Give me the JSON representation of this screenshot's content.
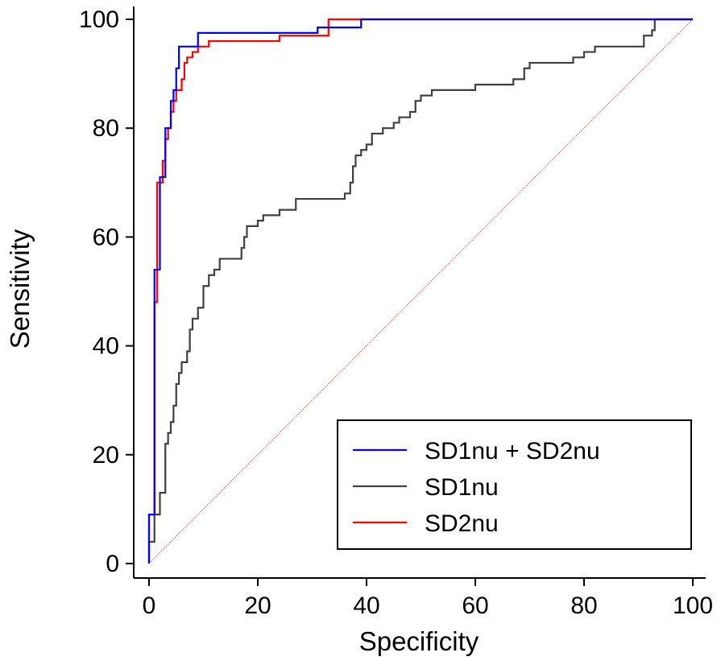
{
  "chart_data": {
    "type": "line",
    "title": "",
    "xlabel": "Specificity",
    "ylabel": "Sensitivity",
    "xlim": [
      0,
      100
    ],
    "ylim": [
      0,
      100
    ],
    "xticks": [
      "0",
      "20",
      "40",
      "60",
      "80",
      "100"
    ],
    "yticks": [
      "0",
      "20",
      "40",
      "60",
      "80",
      "100"
    ],
    "grid": false,
    "legend_position": "bottom-right",
    "reference_line": {
      "from": [
        0,
        0
      ],
      "to": [
        100,
        100
      ],
      "color": "#c0504d",
      "style": "dotted"
    },
    "series": [
      {
        "name": "SD1nu + SD2nu",
        "color": "#0000ff",
        "points": [
          [
            0,
            0
          ],
          [
            0,
            9
          ],
          [
            1,
            9
          ],
          [
            1,
            48
          ],
          [
            1,
            54
          ],
          [
            2,
            54
          ],
          [
            2,
            71
          ],
          [
            3,
            71
          ],
          [
            3,
            80
          ],
          [
            4,
            80
          ],
          [
            4,
            85
          ],
          [
            4.5,
            85
          ],
          [
            4.5,
            87
          ],
          [
            5,
            87
          ],
          [
            5,
            91
          ],
          [
            5.5,
            91
          ],
          [
            5.5,
            95
          ],
          [
            9,
            95
          ],
          [
            9,
            97.5
          ],
          [
            31,
            97.5
          ],
          [
            31,
            98.5
          ],
          [
            39,
            98.5
          ],
          [
            39,
            100
          ],
          [
            100,
            100
          ]
        ]
      },
      {
        "name": "SD1nu",
        "color": "#404040",
        "points": [
          [
            0,
            0
          ],
          [
            0,
            4
          ],
          [
            1,
            4
          ],
          [
            1,
            9
          ],
          [
            2,
            9
          ],
          [
            2,
            13
          ],
          [
            3,
            13
          ],
          [
            3,
            22
          ],
          [
            3.5,
            22
          ],
          [
            3.5,
            24
          ],
          [
            4,
            24
          ],
          [
            4,
            26
          ],
          [
            4.5,
            26
          ],
          [
            4.5,
            29
          ],
          [
            5,
            29
          ],
          [
            5,
            33
          ],
          [
            5.5,
            33
          ],
          [
            5.5,
            35
          ],
          [
            6,
            35
          ],
          [
            6,
            37
          ],
          [
            7,
            37
          ],
          [
            7,
            39
          ],
          [
            7.5,
            39
          ],
          [
            7.5,
            43
          ],
          [
            8,
            43
          ],
          [
            8,
            45
          ],
          [
            9,
            45
          ],
          [
            9,
            47
          ],
          [
            10,
            47
          ],
          [
            10,
            51
          ],
          [
            11,
            51
          ],
          [
            11,
            53
          ],
          [
            12,
            53
          ],
          [
            12,
            54
          ],
          [
            13,
            54
          ],
          [
            13,
            56
          ],
          [
            17,
            56
          ],
          [
            17,
            58
          ],
          [
            17.5,
            58
          ],
          [
            17.5,
            60
          ],
          [
            18,
            60
          ],
          [
            18,
            62
          ],
          [
            20,
            62
          ],
          [
            20,
            63
          ],
          [
            21,
            63
          ],
          [
            21,
            64
          ],
          [
            24,
            64
          ],
          [
            24,
            65
          ],
          [
            27,
            65
          ],
          [
            27,
            67
          ],
          [
            36,
            67
          ],
          [
            36,
            68
          ],
          [
            37,
            68
          ],
          [
            37,
            70
          ],
          [
            37.5,
            70
          ],
          [
            37.5,
            73
          ],
          [
            38,
            73
          ],
          [
            38,
            75
          ],
          [
            39,
            75
          ],
          [
            39,
            76
          ],
          [
            40,
            76
          ],
          [
            40,
            77
          ],
          [
            41,
            77
          ],
          [
            41,
            79
          ],
          [
            43,
            79
          ],
          [
            43,
            80
          ],
          [
            45,
            80
          ],
          [
            45,
            81
          ],
          [
            46,
            81
          ],
          [
            46,
            82
          ],
          [
            48,
            82
          ],
          [
            48,
            83
          ],
          [
            49,
            83
          ],
          [
            49,
            85
          ],
          [
            50,
            85
          ],
          [
            50,
            86
          ],
          [
            52,
            86
          ],
          [
            52,
            87
          ],
          [
            60,
            87
          ],
          [
            60,
            88
          ],
          [
            67,
            88
          ],
          [
            67,
            89
          ],
          [
            69,
            89
          ],
          [
            69,
            91
          ],
          [
            70,
            91
          ],
          [
            70,
            92
          ],
          [
            78,
            92
          ],
          [
            78,
            93
          ],
          [
            80,
            93
          ],
          [
            80,
            94
          ],
          [
            82,
            94
          ],
          [
            82,
            95
          ],
          [
            91,
            95
          ],
          [
            91,
            97
          ],
          [
            92.5,
            97
          ],
          [
            92.5,
            98
          ],
          [
            93,
            98
          ],
          [
            93,
            100
          ],
          [
            100,
            100
          ]
        ]
      },
      {
        "name": "SD2nu",
        "color": "#ff0000",
        "points": [
          [
            0,
            0
          ],
          [
            0,
            9
          ],
          [
            1,
            9
          ],
          [
            1,
            48
          ],
          [
            1.5,
            48
          ],
          [
            1.5,
            70
          ],
          [
            2.5,
            70
          ],
          [
            2.5,
            74
          ],
          [
            3,
            74
          ],
          [
            3,
            78
          ],
          [
            3.5,
            78
          ],
          [
            3.5,
            80
          ],
          [
            4,
            80
          ],
          [
            4,
            83
          ],
          [
            4.5,
            83
          ],
          [
            4.5,
            85
          ],
          [
            5,
            85
          ],
          [
            5,
            87
          ],
          [
            6,
            87
          ],
          [
            6,
            89
          ],
          [
            6.5,
            89
          ],
          [
            6.5,
            92
          ],
          [
            7,
            92
          ],
          [
            7,
            93
          ],
          [
            8,
            93
          ],
          [
            8,
            94
          ],
          [
            9,
            94
          ],
          [
            9,
            95
          ],
          [
            11,
            95
          ],
          [
            11,
            96
          ],
          [
            24,
            96
          ],
          [
            24,
            97
          ],
          [
            33,
            97
          ],
          [
            33,
            100
          ],
          [
            100,
            100
          ]
        ]
      }
    ]
  }
}
